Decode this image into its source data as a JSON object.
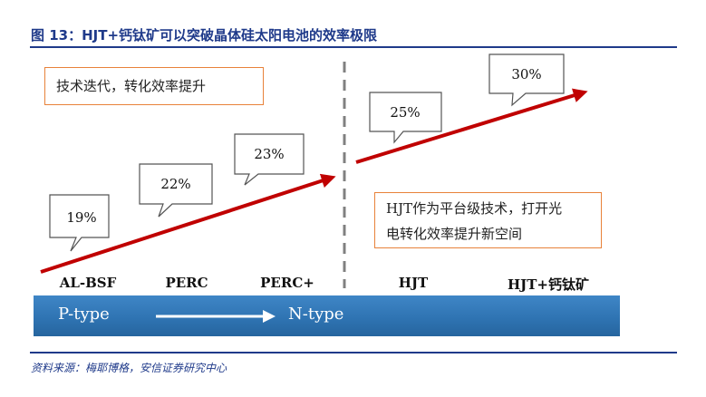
{
  "figure": {
    "title": "图 13：HJT+钙钛矿可以突破晶体硅太阳电池的效率极限",
    "source": "资料来源：梅耶博格，安信证券研究中心"
  },
  "notes": {
    "tech_iteration": "技术迭代，转化效率提升",
    "hjt_platform_line1": "HJT作为平台级技术，打开光",
    "hjt_platform_line2": "电转化效率提升新空间"
  },
  "technologies": [
    {
      "name": "AL-BSF",
      "efficiency": "19%"
    },
    {
      "name": "PERC",
      "efficiency": "22%"
    },
    {
      "name": "PERC+",
      "efficiency": "23%"
    },
    {
      "name": "HJT",
      "efficiency": "25%"
    },
    {
      "name": "HJT+钙钛矿",
      "efficiency": "30%"
    }
  ],
  "band": {
    "from": "P-type",
    "to": "N-type"
  },
  "colors": {
    "title": "#1f3a8a",
    "trend_arrow": "#c00000",
    "note_border": "#e8823a",
    "band": "#2f74b3",
    "divider": "#808080"
  }
}
